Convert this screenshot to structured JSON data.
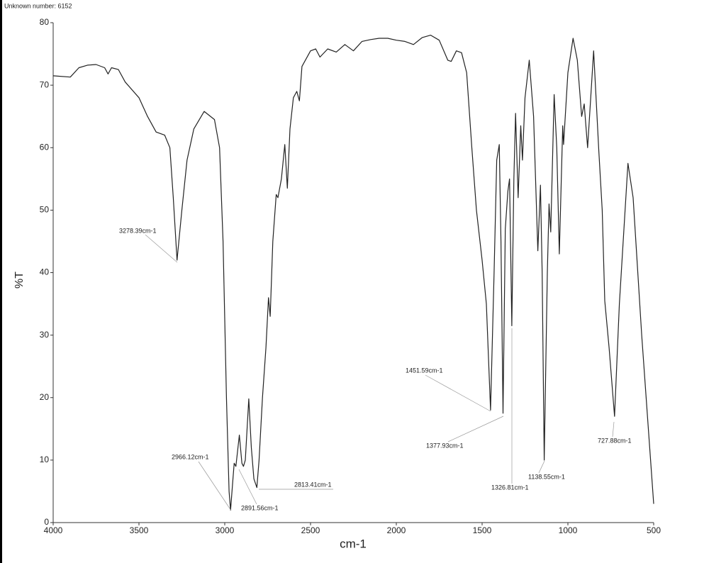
{
  "chart_data": {
    "type": "line",
    "title": "Unknown number: 6152",
    "x_label": "cm-1",
    "y_label": "%T",
    "xlim": [
      4000,
      500
    ],
    "ylim": [
      0,
      80
    ],
    "xticks": [
      4000,
      3500,
      3000,
      2500,
      2000,
      1500,
      1000,
      500
    ],
    "yticks": [
      0,
      10,
      20,
      30,
      40,
      50,
      60,
      70,
      80
    ],
    "grid": false,
    "series": [
      {
        "color": "#222222",
        "x": [
          4000,
          3900,
          3850,
          3800,
          3750,
          3700,
          3680,
          3660,
          3620,
          3580,
          3500,
          3450,
          3400,
          3350,
          3320,
          3300,
          3278,
          3250,
          3220,
          3180,
          3120,
          3060,
          3030,
          3010,
          2990,
          2975,
          2966,
          2955,
          2945,
          2935,
          2915,
          2900,
          2891,
          2880,
          2860,
          2845,
          2830,
          2813,
          2800,
          2780,
          2760,
          2745,
          2735,
          2720,
          2700,
          2690,
          2670,
          2650,
          2635,
          2620,
          2600,
          2580,
          2565,
          2550,
          2500,
          2470,
          2445,
          2400,
          2350,
          2300,
          2250,
          2200,
          2150,
          2100,
          2050,
          2000,
          1950,
          1900,
          1850,
          1800,
          1750,
          1700,
          1680,
          1650,
          1620,
          1590,
          1560,
          1533,
          1500,
          1475,
          1451,
          1430,
          1415,
          1400,
          1390,
          1378,
          1365,
          1350,
          1340,
          1327,
          1315,
          1305,
          1290,
          1275,
          1265,
          1250,
          1225,
          1200,
          1175,
          1160,
          1150,
          1138,
          1120,
          1110,
          1100,
          1080,
          1065,
          1050,
          1030,
          1025,
          1000,
          970,
          945,
          920,
          905,
          885,
          850,
          820,
          800,
          785,
          760,
          728,
          700,
          650,
          620,
          570,
          500
        ],
        "values": [
          71.5,
          71.3,
          72.8,
          73.2,
          73.3,
          72.8,
          71.8,
          72.8,
          72.5,
          70.5,
          68,
          65,
          62.5,
          62,
          60,
          52,
          42,
          50,
          58,
          63,
          65.8,
          64.5,
          60,
          45,
          20,
          5,
          2,
          6,
          9.5,
          9,
          14,
          9.5,
          9,
          10,
          19.8,
          12,
          7,
          5.6,
          10,
          20,
          28,
          36,
          33,
          45,
          52.5,
          52,
          55,
          60.5,
          53.5,
          63,
          68,
          69,
          67.5,
          73,
          75.5,
          75.8,
          74.5,
          75.8,
          75.3,
          76.5,
          75.5,
          77,
          77.3,
          77.5,
          77.5,
          77.2,
          77,
          76.5,
          77.6,
          78,
          77.2,
          74,
          73.8,
          75.5,
          75.2,
          72,
          60,
          50,
          42,
          35,
          18,
          40,
          58,
          60.5,
          45,
          17.5,
          47,
          53,
          55,
          31.5,
          55,
          65.5,
          52,
          63.5,
          58,
          68,
          74,
          65,
          43.5,
          54,
          40,
          10,
          40,
          51,
          46.5,
          68.5,
          60,
          43,
          63.5,
          60.5,
          72,
          77.5,
          74,
          65,
          67,
          60,
          75.5,
          59.5,
          50,
          35.5,
          28,
          17,
          35,
          57.5,
          52,
          30,
          3
        ]
      }
    ],
    "annotations": [
      "3278.39cm-1",
      "2966.12cm-1",
      "2891.56cm-1",
      "2813.41cm-1",
      "1451.59cm-1",
      "1377.93cm-1",
      "1326.81cm-1",
      "1138.55cm-1",
      "727.88cm-1"
    ]
  }
}
